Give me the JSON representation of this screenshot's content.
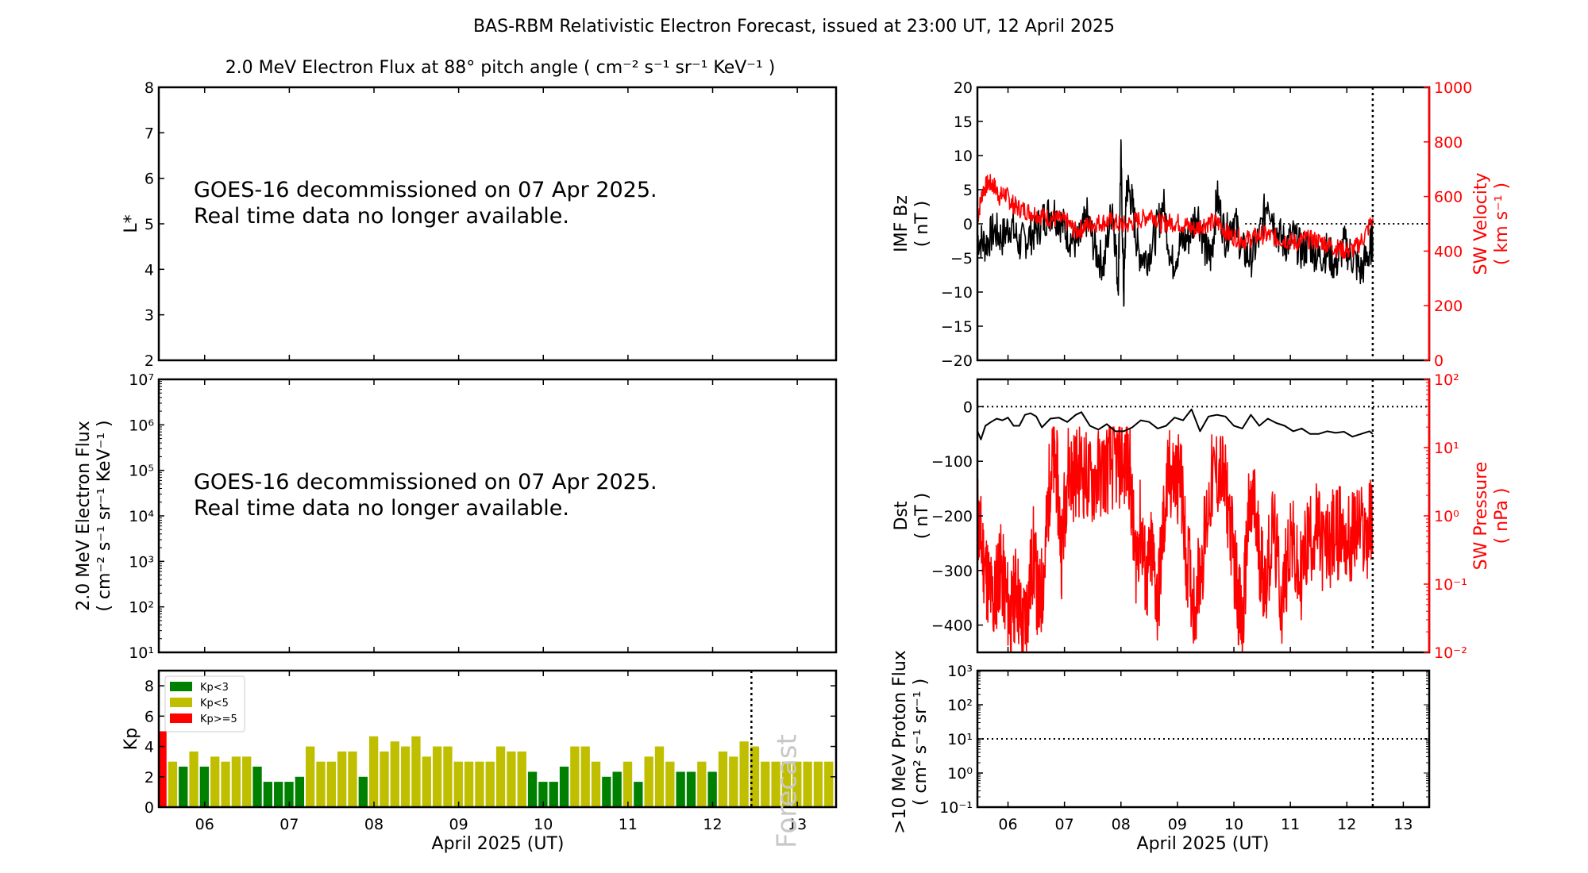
{
  "figure": {
    "title": "BAS-RBM Relativistic Electron Forecast, issued at 23:00 UT, 12 April 2025",
    "xlabel": "April 2025 (UT)",
    "forecast_label": "Forecast",
    "colors": {
      "kp_low": "#008000",
      "kp_mid": "#bfbf00",
      "kp_high": "#ff0000",
      "secondary_axis": "#ff0000",
      "primary": "#000000",
      "forecast_text": "#c8c8c8"
    }
  },
  "chart_data": [
    {
      "id": "lstar",
      "type": "heatmap",
      "title": "2.0 MeV Electron Flux at 88° pitch angle ( cm⁻² s⁻¹ sr⁻¹ KeV⁻¹ )",
      "ylabel": "L*",
      "ylim": [
        2,
        8
      ],
      "yticks": [
        "2",
        "3",
        "4",
        "5",
        "6",
        "7",
        "8"
      ],
      "message": [
        "GOES-16 decommissioned on 07 Apr 2025.",
        "Real time data no longer available."
      ],
      "xlim": [
        5.4583,
        13.4583
      ]
    },
    {
      "id": "electron_flux",
      "type": "line",
      "ylabel_lines": [
        "2.0 MeV Electron Flux",
        "( cm⁻² s⁻¹ sr⁻¹ KeV⁻¹ )"
      ],
      "yscale": "log",
      "ylim": [
        10,
        10000000
      ],
      "yticks": [
        "10¹",
        "10²",
        "10³",
        "10⁴",
        "10⁵",
        "10⁶",
        "10⁷"
      ],
      "message": [
        "GOES-16 decommissioned on 07 Apr 2025.",
        "Real time data no longer available."
      ],
      "xlim": [
        5.4583,
        13.4583
      ]
    },
    {
      "id": "kp",
      "type": "bar",
      "ylabel": "Kp",
      "ylim": [
        0,
        9
      ],
      "yticks": [
        "0",
        "2",
        "4",
        "6",
        "8"
      ],
      "xlim": [
        5.4583,
        13.4583
      ],
      "xticks": [
        "06",
        "07",
        "08",
        "09",
        "10",
        "11",
        "12",
        "13"
      ],
      "bar_interval_hours": 3,
      "first_bar_day": 5.5,
      "forecast_line_day": 12.4583,
      "legend": [
        {
          "label": "Kp<3",
          "color": "#008000"
        },
        {
          "label": "Kp<5",
          "color": "#bfbf00"
        },
        {
          "label": "Kp>=5",
          "color": "#ff0000"
        }
      ],
      "legend_position": "top-left",
      "values": [
        5.0,
        3.0,
        2.67,
        3.67,
        2.67,
        3.33,
        3.0,
        3.33,
        3.33,
        2.67,
        1.67,
        1.67,
        1.67,
        2.0,
        4.0,
        3.0,
        3.0,
        3.67,
        3.67,
        2.0,
        4.67,
        3.67,
        4.33,
        4.0,
        4.67,
        3.33,
        4.0,
        4.0,
        3.0,
        3.0,
        3.0,
        3.0,
        4.0,
        3.67,
        3.67,
        2.33,
        1.67,
        1.67,
        2.67,
        4.0,
        4.0,
        3.0,
        2.0,
        2.33,
        3.0,
        1.67,
        3.33,
        4.0,
        3.0,
        2.33,
        2.33,
        3.0,
        2.33,
        3.67,
        3.33,
        4.33,
        4.0,
        3.0,
        3.0,
        3.0,
        3.0,
        3.0,
        3.0,
        3.0
      ]
    },
    {
      "id": "imf_sw",
      "type": "line",
      "ylabel_lines": [
        "IMF Bz",
        "( nT )"
      ],
      "ylim": [
        -20,
        20
      ],
      "yticks": [
        "−20",
        "−15",
        "−10",
        "−5",
        "0",
        "5",
        "10",
        "15",
        "20"
      ],
      "y2label_lines": [
        "SW Velocity",
        "( km s⁻¹ )"
      ],
      "y2lim": [
        0,
        1000
      ],
      "y2ticks": [
        "0",
        "200",
        "400",
        "600",
        "800",
        "1000"
      ],
      "xlim": [
        5.4583,
        13.4583
      ],
      "forecast_line_day": 12.4583,
      "series": [
        {
          "name": "IMF Bz",
          "color": "#000000",
          "x": [
            5.46,
            5.6,
            5.75,
            5.9,
            6.05,
            6.2,
            6.35,
            6.5,
            6.65,
            6.8,
            6.95,
            7.1,
            7.25,
            7.4,
            7.55,
            7.7,
            7.85,
            7.95,
            8.0,
            8.05,
            8.1,
            8.2,
            8.3,
            8.45,
            8.6,
            8.75,
            8.9,
            9.05,
            9.2,
            9.35,
            9.5,
            9.6,
            9.7,
            9.85,
            10.0,
            10.15,
            10.3,
            10.45,
            10.6,
            10.75,
            10.9,
            11.05,
            11.2,
            11.35,
            11.5,
            11.65,
            11.8,
            11.95,
            12.1,
            12.25,
            12.4,
            12.46
          ],
          "values": [
            -2,
            -3,
            -1,
            -2,
            0,
            -3,
            -2,
            -1,
            1,
            2,
            0,
            -2,
            -3,
            1,
            -4,
            -6,
            3,
            -9,
            10,
            -11,
            6,
            3,
            -4,
            -5,
            -2,
            3,
            -6,
            -3,
            -2,
            2,
            -4,
            -5,
            4,
            -2,
            1,
            -4,
            -5,
            -2,
            4,
            -1,
            -3,
            -2,
            -4,
            -3,
            -5,
            -4,
            -6,
            -3,
            -5,
            -7,
            -4,
            -2
          ]
        },
        {
          "name": "SW Velocity",
          "color": "#ff0000",
          "axis": "right",
          "x": [
            5.46,
            5.55,
            5.65,
            5.75,
            5.85,
            5.95,
            6.05,
            6.15,
            6.3,
            6.45,
            6.6,
            6.75,
            6.9,
            7.05,
            7.2,
            7.35,
            7.5,
            7.65,
            7.8,
            7.95,
            8.1,
            8.25,
            8.4,
            8.55,
            8.7,
            8.85,
            9.0,
            9.15,
            9.3,
            9.45,
            9.6,
            9.75,
            9.9,
            10.05,
            10.2,
            10.35,
            10.5,
            10.65,
            10.8,
            10.95,
            11.1,
            11.25,
            11.4,
            11.55,
            11.7,
            11.85,
            12.0,
            12.15,
            12.3,
            12.46
          ],
          "values": [
            520,
            620,
            650,
            640,
            600,
            610,
            580,
            560,
            550,
            540,
            530,
            520,
            515,
            505,
            470,
            490,
            500,
            505,
            510,
            500,
            495,
            510,
            520,
            540,
            500,
            505,
            505,
            495,
            480,
            500,
            505,
            500,
            460,
            450,
            440,
            450,
            460,
            455,
            445,
            440,
            430,
            445,
            440,
            435,
            420,
            410,
            400,
            410,
            450,
            520
          ]
        }
      ]
    },
    {
      "id": "dst_pressure",
      "type": "line",
      "ylabel_lines": [
        "Dst",
        "( nT )"
      ],
      "ylim": [
        -450,
        50
      ],
      "yticks": [
        "−400",
        "−300",
        "−200",
        "−100",
        "0"
      ],
      "y2label_lines": [
        "SW Pressure",
        "( nPa )"
      ],
      "y2scale": "log",
      "y2lim": [
        0.01,
        100
      ],
      "y2ticks": [
        "10⁻²",
        "10⁻¹",
        "10⁰",
        "10¹",
        "10²"
      ],
      "xlim": [
        5.4583,
        13.4583
      ],
      "forecast_line_day": 12.4583,
      "series": [
        {
          "name": "Dst",
          "color": "#000000",
          "x": [
            5.46,
            5.52,
            5.6,
            5.7,
            5.8,
            5.9,
            6.0,
            6.1,
            6.2,
            6.3,
            6.4,
            6.5,
            6.6,
            6.75,
            6.9,
            7.05,
            7.2,
            7.3,
            7.45,
            7.6,
            7.75,
            7.9,
            8.05,
            8.2,
            8.35,
            8.5,
            8.65,
            8.8,
            8.95,
            9.1,
            9.25,
            9.4,
            9.55,
            9.7,
            9.85,
            10.0,
            10.15,
            10.3,
            10.45,
            10.6,
            10.75,
            10.9,
            11.05,
            11.2,
            11.35,
            11.5,
            11.65,
            11.8,
            11.95,
            12.1,
            12.25,
            12.4,
            12.46
          ],
          "values": [
            -45,
            -60,
            -35,
            -28,
            -22,
            -25,
            -20,
            -35,
            -35,
            -15,
            -12,
            -18,
            -38,
            -22,
            -20,
            -28,
            -15,
            -10,
            -35,
            -42,
            -32,
            -45,
            -45,
            -38,
            -25,
            -28,
            -40,
            -35,
            -20,
            -25,
            -5,
            -45,
            -18,
            -15,
            -18,
            -35,
            -40,
            -15,
            -35,
            -22,
            -30,
            -35,
            -45,
            -40,
            -50,
            -50,
            -45,
            -48,
            -46,
            -55,
            -50,
            -45,
            -50
          ]
        },
        {
          "name": "SW Pressure",
          "color": "#ff0000",
          "axis": "right",
          "x": [
            5.46,
            5.55,
            5.65,
            5.75,
            5.85,
            5.95,
            6.05,
            6.15,
            6.25,
            6.35,
            6.45,
            6.55,
            6.65,
            6.75,
            6.85,
            6.95,
            7.05,
            7.15,
            7.3,
            7.45,
            7.6,
            7.75,
            7.9,
            8.05,
            8.15,
            8.25,
            8.35,
            8.45,
            8.55,
            8.65,
            8.75,
            8.85,
            8.95,
            9.05,
            9.15,
            9.3,
            9.45,
            9.6,
            9.75,
            9.9,
            10.05,
            10.15,
            10.25,
            10.35,
            10.45,
            10.55,
            10.7,
            10.85,
            11.0,
            11.15,
            11.3,
            11.45,
            11.6,
            11.75,
            11.9,
            12.05,
            12.2,
            12.35,
            12.46
          ],
          "values": [
            1.0,
            0.3,
            0.1,
            0.05,
            0.2,
            0.08,
            0.03,
            0.1,
            0.02,
            0.05,
            0.3,
            0.04,
            0.2,
            5.0,
            6.0,
            0.3,
            5.0,
            4.0,
            5.0,
            3.0,
            4.0,
            5.0,
            6.0,
            6.0,
            6.0,
            0.2,
            0.8,
            0.1,
            0.3,
            0.05,
            0.7,
            4.0,
            3.5,
            4.0,
            0.3,
            0.05,
            0.3,
            3.0,
            5.0,
            1.5,
            0.1,
            0.02,
            0.8,
            1.5,
            0.3,
            0.1,
            0.7,
            0.05,
            0.6,
            0.1,
            0.4,
            0.7,
            0.3,
            0.5,
            0.6,
            0.4,
            0.7,
            0.5,
            1.0
          ]
        }
      ]
    },
    {
      "id": "proton_flux",
      "type": "line",
      "ylabel_lines": [
        ">10 MeV Proton Flux",
        "( cm² s⁻¹ sr⁻¹ )"
      ],
      "yscale": "log",
      "ylim": [
        0.1,
        1000
      ],
      "yticks": [
        "10⁻¹",
        "10⁰",
        "10¹",
        "10²",
        "10³"
      ],
      "threshold": 10,
      "xlim": [
        5.4583,
        13.4583
      ],
      "xticks": [
        "06",
        "07",
        "08",
        "09",
        "10",
        "11",
        "12",
        "13"
      ],
      "forecast_line_day": 12.4583
    }
  ]
}
